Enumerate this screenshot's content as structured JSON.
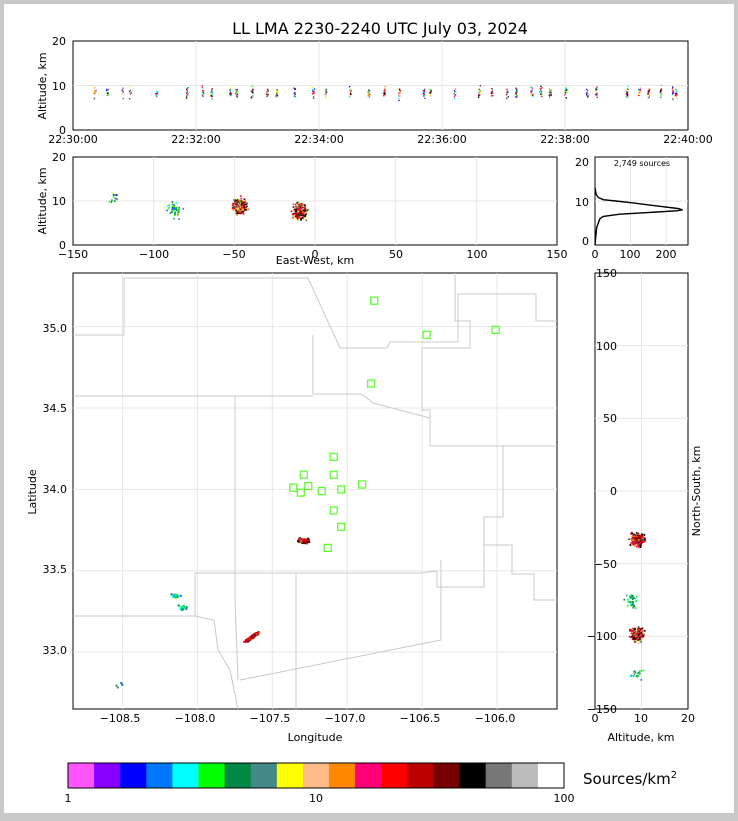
{
  "title": "LL LMA 2230-2240 UTC July 03, 2024",
  "colorbar": {
    "label_main": "Sources/km",
    "label_sup": "2",
    "tick_labels": [
      "1",
      "10",
      "100"
    ],
    "colors": [
      "#ff55ff",
      "#8800ff",
      "#0000ff",
      "#0077ff",
      "#00ffff",
      "#00ff00",
      "#008844",
      "#448888",
      "#ffff00",
      "#ffbb88",
      "#ff8800",
      "#ff0077",
      "#ff0000",
      "#bb0000",
      "#770000",
      "#000000",
      "#777777",
      "#bbbbbb",
      "#ffffff"
    ]
  },
  "stations": {
    "color": "#55ff22"
  },
  "chart_data": [
    {
      "type": "scatter",
      "panel": "altitude-vs-time",
      "xlabel": "",
      "ylabel": "Altitude, km",
      "xlim": [
        "22:30:00",
        "22:40:00"
      ],
      "ylim": [
        0,
        20
      ],
      "x_tick_labels": [
        "22:30:00",
        "22:32:00",
        "22:34:00",
        "22:36:00",
        "22:38:00",
        "22:40:00"
      ],
      "y_tick_labels": [
        "0",
        "10",
        "20"
      ],
      "grid": true,
      "column_minutes": [
        0.35,
        0.55,
        0.8,
        0.92,
        1.35,
        1.85,
        2.1,
        2.25,
        2.55,
        2.65,
        2.9,
        3.15,
        3.3,
        3.6,
        3.9,
        4.1,
        4.5,
        4.8,
        5.05,
        5.3,
        5.7,
        5.8,
        6.2,
        6.6,
        6.8,
        7.05,
        7.2,
        7.45,
        7.6,
        7.75,
        8.0,
        8.35,
        8.5,
        9.0,
        9.2,
        9.35,
        9.55,
        9.75,
        9.8
      ]
    },
    {
      "type": "scatter",
      "panel": "altitude-vs-east-west",
      "xlabel": "East-West, km",
      "ylabel": "Altitude, km",
      "xlim": [
        -150,
        150
      ],
      "ylim": [
        0,
        20
      ],
      "x_tick_labels": [
        "−150",
        "−100",
        "−50",
        "0",
        "50",
        "100",
        "150"
      ],
      "y_tick_labels": [
        "0",
        "10",
        "20"
      ],
      "grid": true,
      "clusters_km": [
        {
          "x": -125,
          "alt": 11,
          "n": 15
        },
        {
          "x": -87,
          "alt": 8,
          "n": 45
        },
        {
          "x": -47,
          "alt": 9,
          "n": 260
        },
        {
          "x": -10,
          "alt": 8,
          "n": 320
        }
      ]
    },
    {
      "type": "line",
      "panel": "altitude-histogram",
      "annotation": "2,749 sources",
      "xlim": [
        0,
        225
      ],
      "ylim": [
        0,
        20
      ],
      "x_tick_labels": [
        "0",
        "100",
        "200"
      ],
      "y_tick_labels": [
        "0",
        "10",
        "20"
      ],
      "grid": true,
      "profile": [
        [
          0,
          0
        ],
        [
          2,
          2
        ],
        [
          4,
          4
        ],
        [
          8,
          5
        ],
        [
          12,
          6
        ],
        [
          20,
          6.5
        ],
        [
          60,
          7
        ],
        [
          150,
          7.5
        ],
        [
          200,
          7.8
        ],
        [
          212,
          8
        ],
        [
          200,
          8.3
        ],
        [
          140,
          9
        ],
        [
          90,
          9.6
        ],
        [
          50,
          10
        ],
        [
          20,
          10.3
        ],
        [
          8,
          10.8
        ],
        [
          3,
          11.5
        ],
        [
          1,
          12.5
        ],
        [
          0,
          13
        ]
      ]
    },
    {
      "type": "scatter",
      "panel": "latitude-vs-longitude",
      "xlabel": "Longitude",
      "ylabel": "Latitude",
      "xlim": [
        -108.83,
        -105.6
      ],
      "ylim": [
        32.65,
        35.33
      ],
      "x_tick_labels": [
        "−108.5",
        "−108.0",
        "−107.5",
        "−107.0",
        "−106.5",
        "−106.0"
      ],
      "y_tick_labels": [
        "33.0",
        "33.5",
        "34.0",
        "34.5",
        "35.0"
      ],
      "grid": true,
      "clusters": [
        {
          "lon": -107.3,
          "lat": 33.69,
          "n": 330
        },
        {
          "lon": -107.64,
          "lat": 33.1,
          "n": 260
        },
        {
          "lon": -108.1,
          "lat": 33.28,
          "n": 25
        },
        {
          "lon": -108.15,
          "lat": 33.35,
          "n": 15
        },
        {
          "lon": -108.52,
          "lat": 32.8,
          "n": 6
        }
      ],
      "stations_lonlat": [
        [
          -106.82,
          35.16
        ],
        [
          -106.47,
          34.95
        ],
        [
          -106.01,
          34.98
        ],
        [
          -106.84,
          34.65
        ],
        [
          -107.09,
          34.2
        ],
        [
          -107.29,
          34.09
        ],
        [
          -107.09,
          34.09
        ],
        [
          -107.36,
          34.01
        ],
        [
          -107.26,
          34.02
        ],
        [
          -107.31,
          33.98
        ],
        [
          -107.17,
          33.99
        ],
        [
          -107.04,
          34.0
        ],
        [
          -106.9,
          34.03
        ],
        [
          -107.09,
          33.87
        ],
        [
          -107.04,
          33.77
        ],
        [
          -107.13,
          33.64
        ]
      ]
    },
    {
      "type": "scatter",
      "panel": "north-south-vs-altitude",
      "xlabel": "Altitude, km",
      "ylabel": "North-South, km",
      "xlim": [
        0,
        20
      ],
      "ylim": [
        -150,
        150
      ],
      "x_tick_labels": [
        "0",
        "10",
        "20"
      ],
      "y_tick_labels": [
        "−150",
        "−100",
        "−50",
        "0",
        "50",
        "100"
      ],
      "y_tick_top": "150",
      "grid": true,
      "clusters_km": [
        {
          "alt": 9,
          "ns": -33,
          "n": 300
        },
        {
          "alt": 9,
          "ns": -98,
          "n": 280
        },
        {
          "alt": 8,
          "ns": -75,
          "n": 40
        },
        {
          "alt": 9,
          "ns": -126,
          "n": 20
        }
      ]
    }
  ]
}
